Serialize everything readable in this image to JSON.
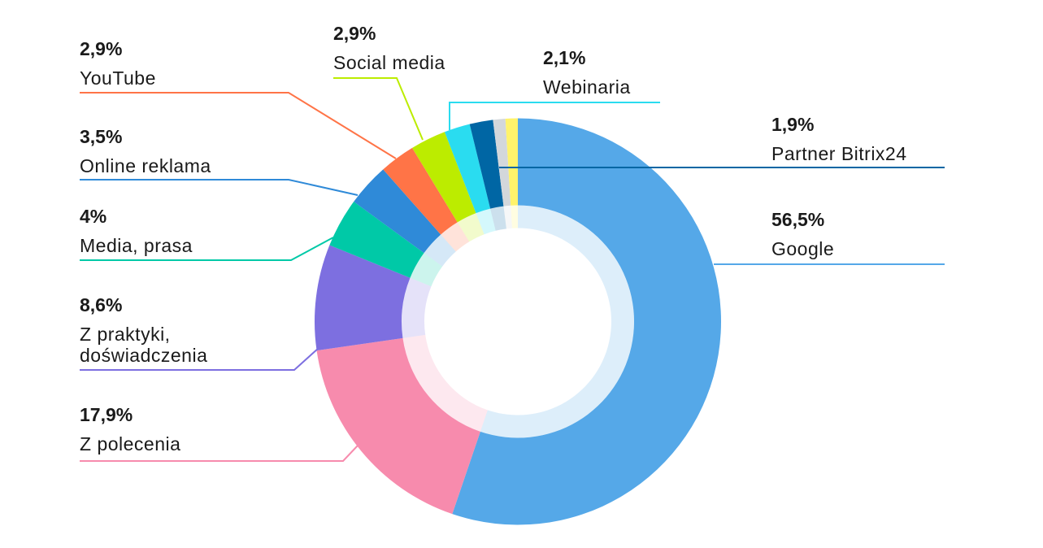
{
  "chart_data": {
    "type": "pie",
    "variant": "donut",
    "start": "top",
    "direction": "clockwise",
    "slices": [
      {
        "label": "Google",
        "value": 56.5,
        "value_label": "56,5%",
        "color": "#55a8e8"
      },
      {
        "label": "Z polecenia",
        "value": 17.9,
        "value_label": "17,9%",
        "color": "#f78bad"
      },
      {
        "label": "Z praktyki, doświadczenia",
        "label_lines": [
          "Z praktyki,",
          "doświadczenia"
        ],
        "value": 8.6,
        "value_label": "8,6%",
        "color": "#7d6fe0"
      },
      {
        "label": "Media, prasa",
        "value": 4,
        "value_label": "4%",
        "color": "#00c9a7"
      },
      {
        "label": "Online reklama",
        "value": 3.5,
        "value_label": "3,5%",
        "color": "#2f8ad8"
      },
      {
        "label": "YouTube",
        "value": 2.9,
        "value_label": "2,9%",
        "color": "#ff7447"
      },
      {
        "label": "Social media",
        "value": 2.9,
        "value_label": "2,9%",
        "color": "#bcec00"
      },
      {
        "label": "Webinaria",
        "value": 2.1,
        "value_label": "2,1%",
        "color": "#2adcf0"
      },
      {
        "label": "Partner Bitrix24",
        "value": 1.9,
        "value_label": "1,9%",
        "color": "#0066a4"
      },
      {
        "label": "",
        "value": 1,
        "color": "#d3d7db"
      },
      {
        "label": "",
        "value": 1,
        "color": "#fff36b"
      }
    ]
  }
}
